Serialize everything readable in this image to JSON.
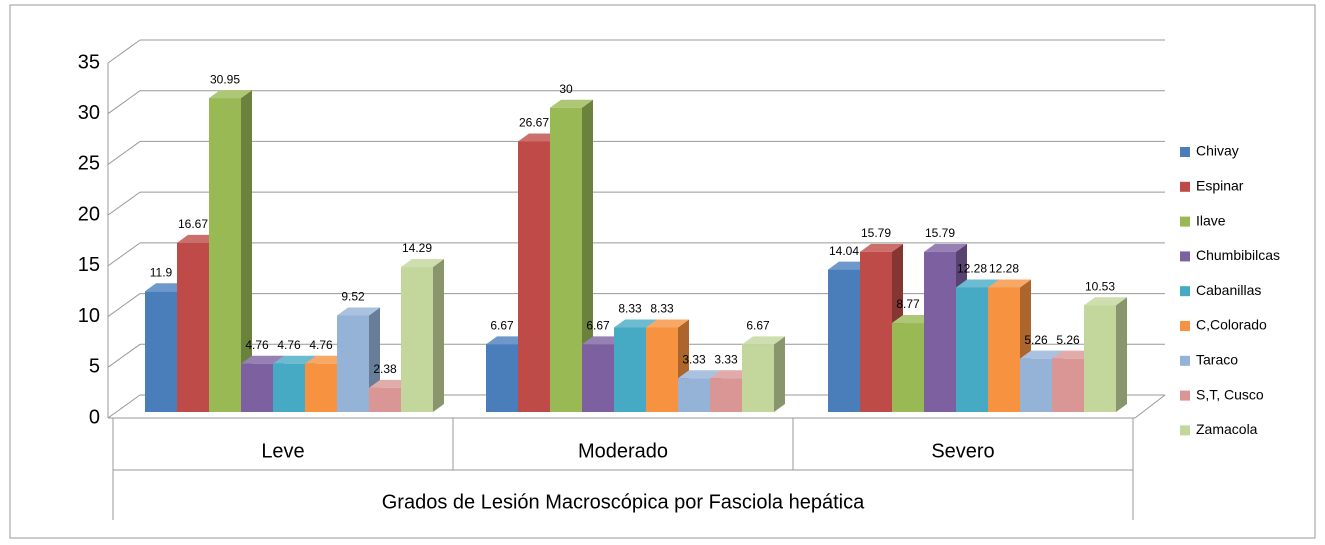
{
  "chart_data": {
    "type": "bar3d",
    "x_label": "Grados de Lesión Macroscópica por Fasciola hepática",
    "categories": [
      "Leve",
      "Moderado",
      "Severo"
    ],
    "series": [
      {
        "name": "Chivay",
        "color": "#4a7ebb",
        "values": [
          11.9,
          6.67,
          14.04
        ]
      },
      {
        "name": "Espinar",
        "color": "#be4b48",
        "values": [
          16.67,
          26.67,
          15.79
        ]
      },
      {
        "name": "Ilave",
        "color": "#98b954",
        "values": [
          30.95,
          30,
          8.77
        ]
      },
      {
        "name": "Chumbibilcas",
        "color": "#7d60a0",
        "values": [
          4.76,
          6.67,
          15.79
        ]
      },
      {
        "name": "Cabanillas",
        "color": "#46aac5",
        "values": [
          4.76,
          8.33,
          12.28
        ]
      },
      {
        "name": "C,Colorado",
        "color": "#f69240",
        "values": [
          4.76,
          8.33,
          12.28
        ]
      },
      {
        "name": "Taraco",
        "color": "#95b3d7",
        "values": [
          9.52,
          3.33,
          5.26
        ]
      },
      {
        "name": "S,T, Cusco",
        "color": "#da9694",
        "values": [
          2.38,
          3.33,
          5.26
        ]
      },
      {
        "name": "Zamacola",
        "color": "#c3d69b",
        "values": [
          14.29,
          6.67,
          10.53
        ]
      }
    ],
    "ylim": [
      0,
      35
    ],
    "yticks": [
      0,
      5,
      10,
      15,
      20,
      25,
      30,
      35
    ],
    "grid": true,
    "legend": "right"
  }
}
